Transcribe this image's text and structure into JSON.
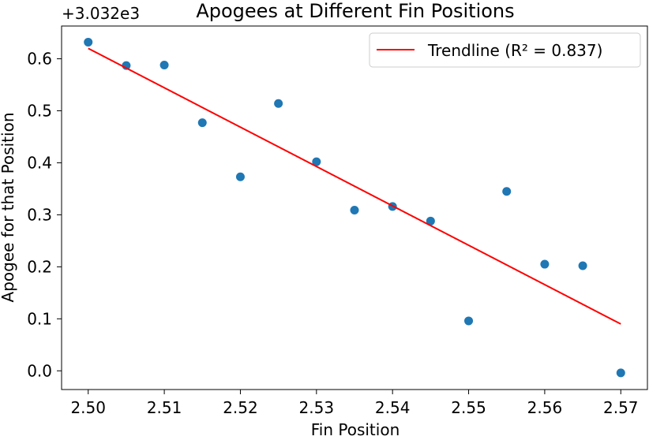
{
  "chart_data": {
    "type": "scatter",
    "title": "Apogees at Different Fin Positions",
    "xlabel": "Fin Position",
    "ylabel": "Apogee for that Position",
    "offset_text": "+3.032e3",
    "xlim": [
      2.4965,
      2.5735
    ],
    "ylim": [
      -0.036,
      0.663
    ],
    "x_ticks": [
      2.5,
      2.51,
      2.52,
      2.53,
      2.54,
      2.55,
      2.56,
      2.57
    ],
    "x_tick_labels": [
      "2.50",
      "2.51",
      "2.52",
      "2.53",
      "2.54",
      "2.55",
      "2.56",
      "2.57"
    ],
    "y_ticks": [
      0.0,
      0.1,
      0.2,
      0.3,
      0.4,
      0.5,
      0.6
    ],
    "y_tick_labels": [
      "0.0",
      "0.1",
      "0.2",
      "0.3",
      "0.4",
      "0.5",
      "0.6"
    ],
    "grid": false,
    "legend_position": "upper right",
    "points": {
      "x": [
        2.5,
        2.505,
        2.51,
        2.515,
        2.52,
        2.525,
        2.53,
        2.535,
        2.54,
        2.545,
        2.55,
        2.555,
        2.56,
        2.565,
        2.57
      ],
      "y": [
        0.632,
        0.587,
        0.588,
        0.477,
        0.373,
        0.514,
        0.402,
        0.309,
        0.316,
        0.288,
        0.096,
        0.345,
        0.205,
        0.202,
        -0.004
      ],
      "color": "#1f77b4"
    },
    "trendline": {
      "label": "Trendline (R² = 0.837)",
      "x": [
        2.5,
        2.57
      ],
      "y": [
        0.62,
        0.09
      ],
      "color": "#ff0000"
    }
  }
}
